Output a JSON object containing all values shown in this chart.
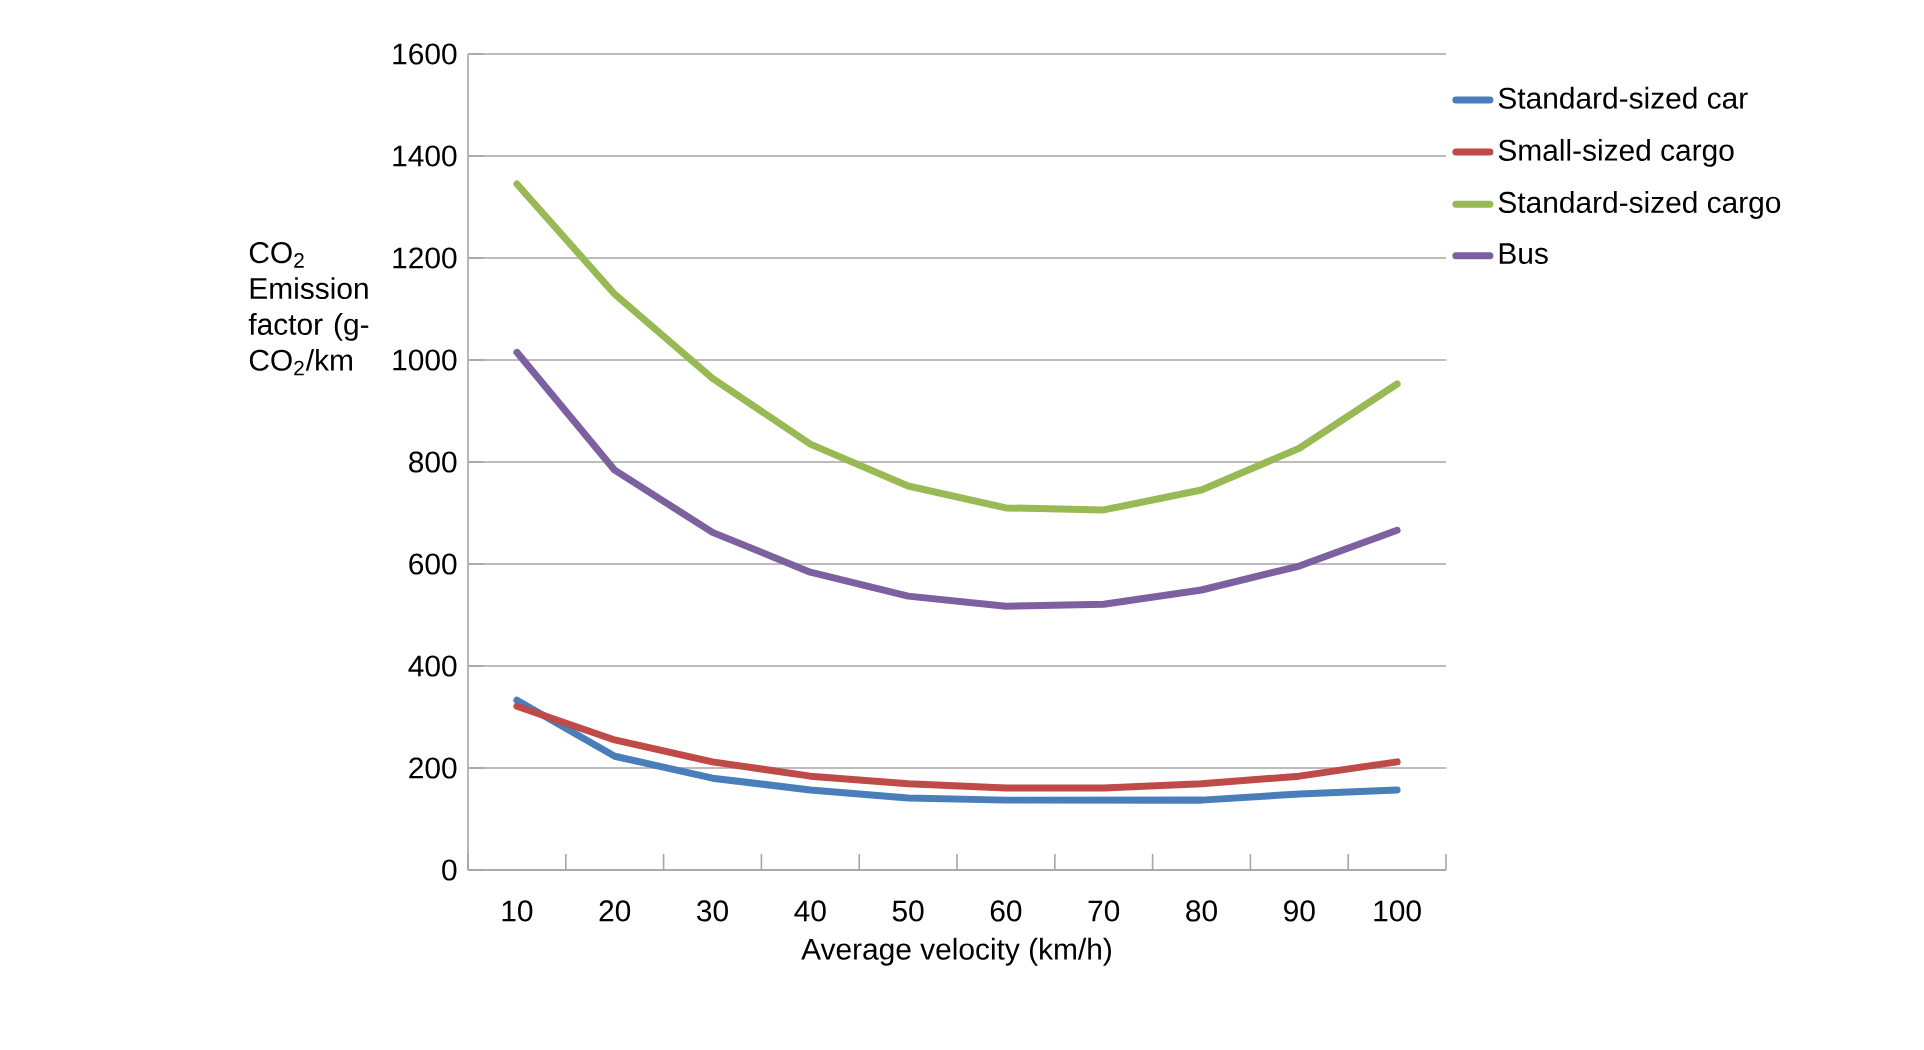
{
  "chart_data": {
    "type": "line",
    "xlabel": "Average velocity (km/h)",
    "ylabel": "CO$_{2}$ Emission factor (g-CO$_{2}$/km",
    "categories": [
      "10",
      "20",
      "30",
      "40",
      "50",
      "60",
      "70",
      "80",
      "90",
      "100"
    ],
    "series": [
      {
        "name": "Standard-sized car",
        "color": "#4a7ebb",
        "values": [
          333,
          223,
          180,
          157,
          141,
          137,
          137,
          137,
          149,
          157
        ]
      },
      {
        "name": "Small-sized cargo",
        "color": "#be4b48",
        "values": [
          321,
          255,
          212,
          184,
          169,
          161,
          161,
          169,
          184,
          212
        ]
      },
      {
        "name": "Standard-sized cargo",
        "color": "#98b954",
        "values": [
          1345,
          1129,
          964,
          835,
          753,
          710,
          706,
          745,
          827,
          953
        ]
      },
      {
        "name": "Bus",
        "color": "#7d60a0",
        "values": [
          1015,
          784,
          662,
          584,
          537,
          517,
          521,
          549,
          596,
          666
        ]
      }
    ],
    "ylim": [
      0,
      1600
    ],
    "yticks": [
      0,
      200,
      400,
      600,
      800,
      1000,
      1200,
      1400,
      1600
    ],
    "grid": "y",
    "legend": "right",
    "marker": "none",
    "line_style": "solid"
  }
}
